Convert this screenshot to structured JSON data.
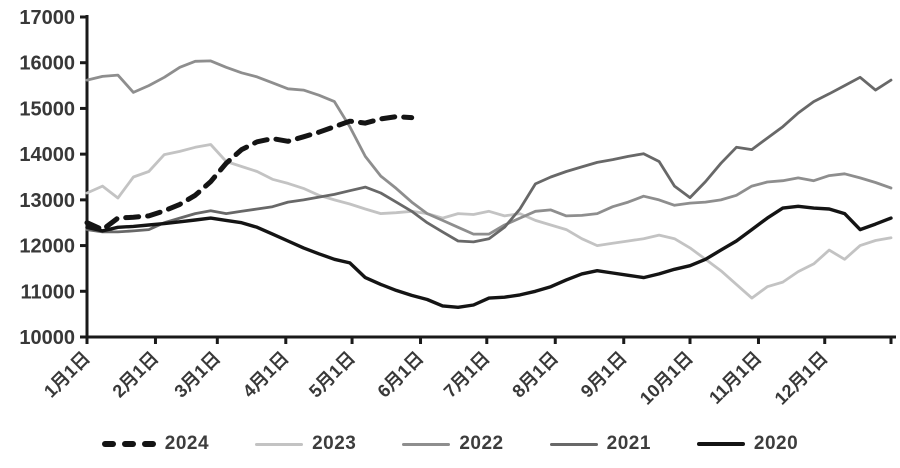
{
  "chart_data": {
    "type": "line",
    "title": "",
    "subtitle": "",
    "grid": false,
    "background": "#ffffff",
    "y_axis": {
      "min": 10000,
      "max": 17000,
      "tick_step": 1000,
      "tick_labels": [
        "10000",
        "11000",
        "12000",
        "13000",
        "14000",
        "15000",
        "16000",
        "17000"
      ]
    },
    "x_axis": {
      "days_total": 364,
      "tick_days": [
        0,
        31,
        59,
        90,
        120,
        151,
        181,
        212,
        243,
        273,
        304,
        334
      ],
      "tick_labels": [
        "1月1日",
        "2月1日",
        "3月1日",
        "4月1日",
        "5月1日",
        "6月1日",
        "7月1日",
        "8月1日",
        "9月1日",
        "10月1日",
        "11月1日",
        "12月1日"
      ],
      "end_tick_day": 364,
      "label_rotation_deg": -45
    },
    "sampling": "weekly values, index i = days from Jan 1 / 7",
    "legend": {
      "position": "bottom",
      "items": [
        "2024",
        "2023",
        "2022",
        "2021",
        "2020"
      ]
    },
    "series": [
      {
        "name": "2024",
        "color": "#141414",
        "style": "dashed",
        "stroke_width": 5,
        "values": [
          12500,
          12350,
          12600,
          12620,
          12650,
          12760,
          12900,
          13100,
          13400,
          13800,
          14100,
          14270,
          14340,
          14280,
          14380,
          14480,
          14600,
          14720,
          14680,
          14770,
          14820,
          14800
        ]
      },
      {
        "name": "2023",
        "color": "#c3c3c3",
        "style": "solid",
        "stroke_width": 2.8,
        "values": [
          13150,
          13300,
          13040,
          13500,
          13620,
          13990,
          14060,
          14150,
          14210,
          13840,
          13730,
          13620,
          13450,
          13360,
          13250,
          13100,
          13000,
          12910,
          12800,
          12700,
          12720,
          12750,
          12700,
          12600,
          12700,
          12680,
          12750,
          12650,
          12700,
          12550,
          12450,
          12350,
          12150,
          12000,
          12050,
          12100,
          12150,
          12230,
          12150,
          11950,
          11700,
          11450,
          11150,
          10850,
          11100,
          11200,
          11430,
          11600,
          11900,
          11700,
          12000,
          12110,
          12170
        ]
      },
      {
        "name": "2022",
        "color": "#8e8e8e",
        "style": "solid",
        "stroke_width": 2.8,
        "values": [
          15620,
          15700,
          15730,
          15350,
          15500,
          15680,
          15900,
          16030,
          16040,
          15900,
          15780,
          15690,
          15560,
          15430,
          15400,
          15290,
          15150,
          14600,
          13950,
          13520,
          13250,
          12950,
          12700,
          12550,
          12400,
          12250,
          12250,
          12450,
          12600,
          12750,
          12780,
          12650,
          12660,
          12700,
          12850,
          12950,
          13080,
          13000,
          12880,
          12930,
          12950,
          13000,
          13100,
          13300,
          13390,
          13420,
          13480,
          13420,
          13530,
          13570,
          13480,
          13380,
          13260
        ]
      },
      {
        "name": "2021",
        "color": "#686868",
        "style": "solid",
        "stroke_width": 2.8,
        "values": [
          12350,
          12300,
          12300,
          12320,
          12350,
          12500,
          12600,
          12700,
          12760,
          12700,
          12750,
          12800,
          12850,
          12950,
          13000,
          13060,
          13120,
          13200,
          13280,
          13150,
          12950,
          12750,
          12500,
          12300,
          12100,
          12080,
          12150,
          12400,
          12800,
          13350,
          13500,
          13620,
          13720,
          13820,
          13880,
          13950,
          14010,
          13840,
          13300,
          13050,
          13400,
          13800,
          14150,
          14100,
          14350,
          14600,
          14900,
          15150,
          15320,
          15500,
          15680,
          15400,
          15620
        ]
      },
      {
        "name": "2020",
        "color": "#141414",
        "style": "solid",
        "stroke_width": 3.4,
        "values": [
          12400,
          12320,
          12400,
          12420,
          12450,
          12480,
          12520,
          12560,
          12600,
          12550,
          12500,
          12400,
          12250,
          12100,
          11950,
          11820,
          11700,
          11620,
          11300,
          11150,
          11020,
          10910,
          10820,
          10680,
          10650,
          10700,
          10850,
          10870,
          10920,
          11000,
          11100,
          11250,
          11380,
          11450,
          11400,
          11350,
          11300,
          11380,
          11480,
          11560,
          11700,
          11900,
          12100,
          12350,
          12600,
          12820,
          12860,
          12820,
          12800,
          12700,
          12350,
          12470,
          12600
        ]
      }
    ],
    "draw_order": [
      "2023",
      "2022",
      "2021",
      "2020",
      "2024"
    ]
  },
  "styles": {
    "axis_color": "#1a1a1a",
    "text_color": "#383838",
    "axis_stroke_width": 3,
    "tick_length": 7
  }
}
